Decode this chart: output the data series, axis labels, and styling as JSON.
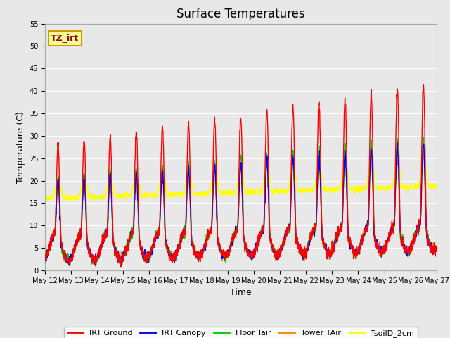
{
  "title": "Surface Temperatures",
  "xlabel": "Time",
  "ylabel": "Temperature (C)",
  "ylim": [
    0,
    55
  ],
  "bg_color": "#e8e8e8",
  "annotation_text": "TZ_irt",
  "annotation_bg": "#ffff99",
  "annotation_border": "#cc9900",
  "x_tick_labels": [
    "May 12",
    "May 13",
    "May 14",
    "May 15",
    "May 16",
    "May 17",
    "May 18",
    "May 19",
    "May 20",
    "May 21",
    "May 22",
    "May 23",
    "May 24",
    "May 25",
    "May 26",
    "May 27"
  ],
  "series": [
    {
      "name": "IRT Ground",
      "color": "#ff0000"
    },
    {
      "name": "IRT Canopy",
      "color": "#0000ff"
    },
    {
      "name": "Floor Tair",
      "color": "#00cc00"
    },
    {
      "name": "Tower TAir",
      "color": "#ff8800"
    },
    {
      "name": "TsoilD_2cm",
      "color": "#ffff00"
    }
  ],
  "num_days": 15,
  "ppd": 144,
  "grid_color": "#ffffff",
  "spine_color": "#aaaaaa",
  "title_fontsize": 12,
  "label_fontsize": 9,
  "tick_fontsize": 7,
  "legend_fontsize": 8
}
